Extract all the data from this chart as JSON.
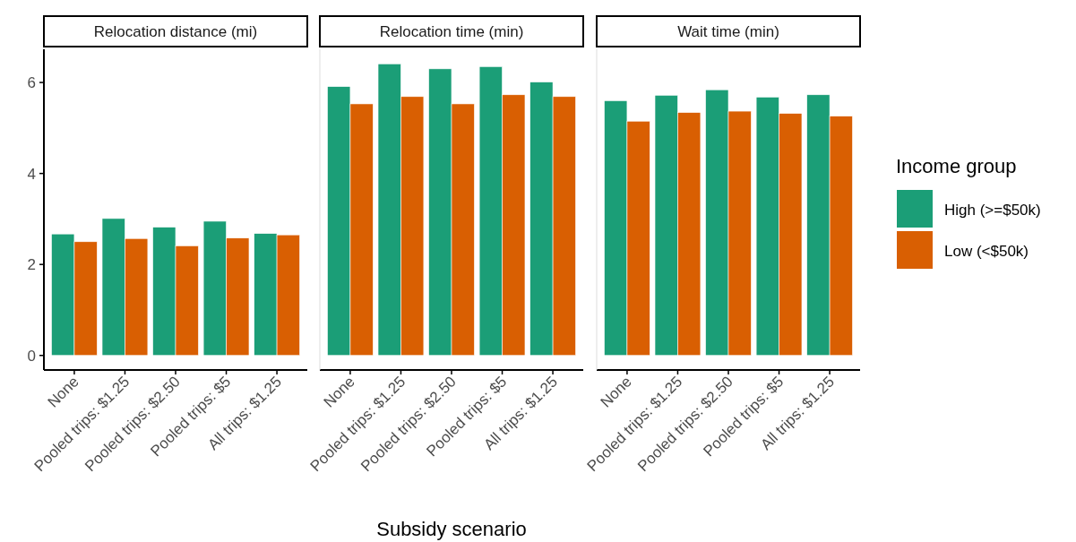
{
  "chart_data": [
    {
      "type": "bar",
      "title": "Relocation distance (mi)",
      "categories": [
        "None",
        "Pooled trips: $1.25",
        "Pooled trips: $2.50",
        "Pooled trips: $5",
        "All trips: $1.25"
      ],
      "ylim": [
        -0.32,
        6.73
      ],
      "yticks": [
        0,
        2,
        4,
        6
      ],
      "series": [
        {
          "color": "#1b9e77",
          "values": [
            2.67,
            3.01,
            2.82,
            2.95,
            2.68
          ]
        },
        {
          "color": "#d95f02",
          "values": [
            2.5,
            2.57,
            2.41,
            2.58,
            2.65
          ]
        }
      ]
    },
    {
      "type": "bar",
      "title": "Relocation time (min)",
      "xlabel": "Subsidy scenario",
      "categories": [
        "None",
        "Pooled trips: $1.25",
        "Pooled trips: $2.50",
        "Pooled trips: $5",
        "All trips: $1.25"
      ],
      "ylim": [
        -0.32,
        6.73
      ],
      "tick_labels": "x",
      "series": [
        {
          "color": "#1b9e77",
          "values": [
            5.91,
            6.41,
            6.3,
            6.35,
            6.01
          ]
        },
        {
          "color": "#d95f02",
          "values": [
            5.53,
            5.69,
            5.53,
            5.73,
            5.69
          ]
        }
      ]
    },
    {
      "type": "bar",
      "title": "Wait time (min)",
      "categories": [
        "None",
        "Pooled trips: $1.25",
        "Pooled trips: $2.50",
        "Pooled trips: $5",
        "All trips: $1.25"
      ],
      "ylim": [
        -0.32,
        6.73
      ],
      "tick_labels": "x",
      "legend": "right",
      "legend_title": "Income group",
      "series": [
        {
          "name": "High (>=$50k)",
          "color": "#1b9e77",
          "values": [
            5.6,
            5.72,
            5.84,
            5.68,
            5.73
          ]
        },
        {
          "name": "Low (<$50k)",
          "color": "#d95f02",
          "values": [
            5.15,
            5.34,
            5.37,
            5.32,
            5.26
          ]
        }
      ]
    }
  ]
}
